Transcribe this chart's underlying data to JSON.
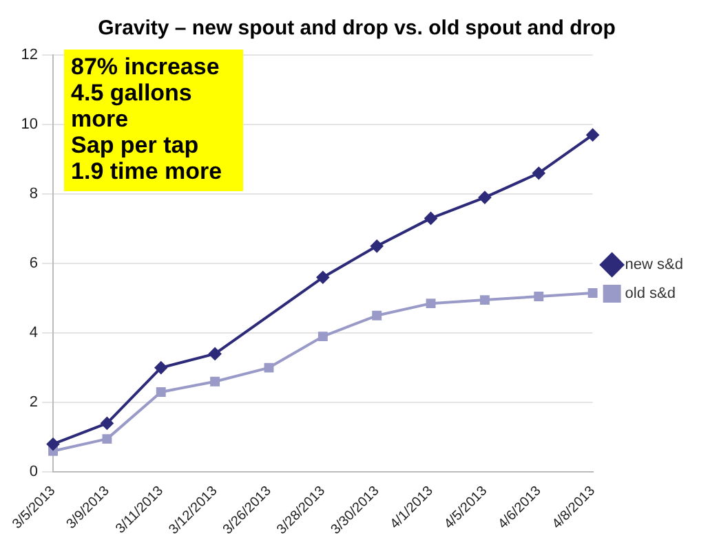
{
  "chart_data": {
    "type": "line",
    "title": "Gravity – new spout and drop vs. old spout and drop",
    "categories": [
      "3/5/2013",
      "3/9/2013",
      "3/11/2013",
      "3/12/2013",
      "3/26/2013",
      "3/28/2013",
      "3/30/2013",
      "4/1/2013",
      "4/5/2013",
      "4/6/2013",
      "4/8/2013"
    ],
    "series": [
      {
        "name": "new s&d",
        "color": "#2e2a7a",
        "marker": "diamond",
        "values": [
          0.8,
          1.4,
          3.0,
          3.4,
          null,
          5.6,
          6.5,
          7.3,
          7.9,
          8.6,
          9.7
        ]
      },
      {
        "name": "old s&d",
        "color": "#9a9ac8",
        "marker": "square",
        "values": [
          0.6,
          0.95,
          2.3,
          2.6,
          3.0,
          3.9,
          4.5,
          4.85,
          4.95,
          5.05,
          5.15
        ]
      }
    ],
    "ylim": [
      0,
      12
    ],
    "yticks": [
      0,
      2,
      4,
      6,
      8,
      10,
      12
    ],
    "grid": "y",
    "legend": "right",
    "annotations": [
      "87% increase",
      "4.5 gallons more",
      "Sap per tap 1.9 time more"
    ]
  }
}
